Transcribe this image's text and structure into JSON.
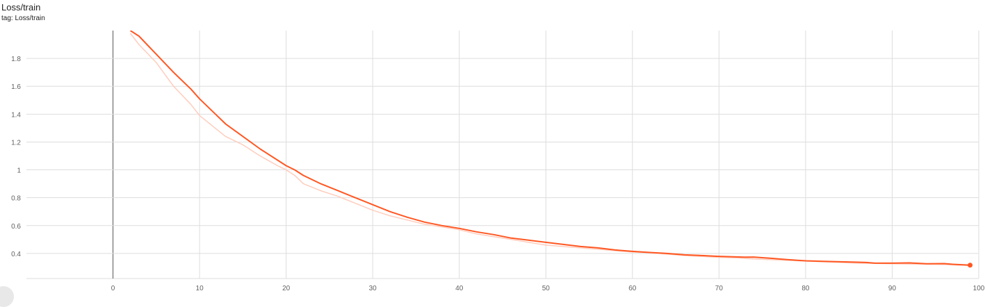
{
  "header": {
    "title": "Loss/train",
    "subtitle": "tag: Loss/train"
  },
  "colors": {
    "smoothed": "#ff5722",
    "raw": "#ffccbc",
    "grid": "#dddddd",
    "zero_axis": "#555555"
  },
  "chart_data": {
    "type": "line",
    "title": "Loss/train",
    "subtitle": "tag: Loss/train",
    "xlabel": "",
    "ylabel": "",
    "xlim": [
      -10,
      100
    ],
    "ylim": [
      0.22,
      2.0
    ],
    "x_ticks": [
      0,
      10,
      20,
      30,
      40,
      50,
      60,
      70,
      80,
      90,
      100
    ],
    "y_ticks": [
      0.4,
      0.6,
      0.8,
      1.0,
      1.2,
      1.4,
      1.6,
      1.8
    ],
    "y_tick_labels": [
      "0.4",
      "0.6",
      "0.8",
      "1",
      "1.2",
      "1.4",
      "1.6",
      "1.8"
    ],
    "grid": true,
    "series": [
      {
        "role": "raw",
        "x": [
          2,
          3,
          5,
          7,
          9,
          10,
          12,
          13,
          15,
          17,
          19,
          20,
          21,
          22,
          24,
          26,
          28,
          30,
          32,
          34,
          36,
          38,
          40,
          42,
          44,
          46,
          48,
          50,
          52,
          54,
          56,
          58,
          60,
          62,
          64,
          66,
          68,
          70,
          72,
          74,
          76,
          78,
          80,
          82,
          84,
          86,
          88,
          90,
          92,
          94,
          96,
          98,
          99
        ],
        "values": [
          1.98,
          1.9,
          1.77,
          1.6,
          1.47,
          1.39,
          1.29,
          1.24,
          1.18,
          1.1,
          1.03,
          1.0,
          0.96,
          0.9,
          0.85,
          0.81,
          0.76,
          0.71,
          0.67,
          0.64,
          0.61,
          0.59,
          0.57,
          0.54,
          0.52,
          0.5,
          0.48,
          0.46,
          0.45,
          0.44,
          0.43,
          0.42,
          0.41,
          0.405,
          0.395,
          0.385,
          0.378,
          0.372,
          0.368,
          0.36,
          0.355,
          0.35,
          0.345,
          0.34,
          0.335,
          0.33,
          0.328,
          0.326,
          0.324,
          0.322,
          0.32,
          0.315,
          0.313
        ]
      },
      {
        "role": "smoothed",
        "x": [
          2,
          3,
          5,
          7,
          9,
          10,
          12,
          13,
          15,
          17,
          19,
          20,
          21,
          22,
          24,
          26,
          28,
          30,
          32,
          34,
          36,
          38,
          40,
          42,
          44,
          46,
          48,
          50,
          52,
          54,
          56,
          58,
          60,
          62,
          64,
          66,
          68,
          70,
          72,
          73,
          74,
          76,
          78,
          80,
          82,
          84,
          86,
          87,
          88,
          90,
          92,
          94,
          96,
          97,
          99
        ],
        "values": [
          2.0,
          1.96,
          1.83,
          1.7,
          1.58,
          1.51,
          1.39,
          1.33,
          1.24,
          1.15,
          1.07,
          1.03,
          1.0,
          0.96,
          0.9,
          0.85,
          0.8,
          0.75,
          0.7,
          0.66,
          0.625,
          0.6,
          0.58,
          0.555,
          0.535,
          0.51,
          0.495,
          0.48,
          0.465,
          0.45,
          0.44,
          0.425,
          0.415,
          0.407,
          0.4,
          0.39,
          0.385,
          0.379,
          0.375,
          0.373,
          0.374,
          0.365,
          0.355,
          0.347,
          0.343,
          0.34,
          0.337,
          0.335,
          0.33,
          0.33,
          0.332,
          0.326,
          0.327,
          0.322,
          0.316
        ]
      }
    ],
    "end_marker": {
      "x": 99,
      "y": 0.316
    }
  }
}
